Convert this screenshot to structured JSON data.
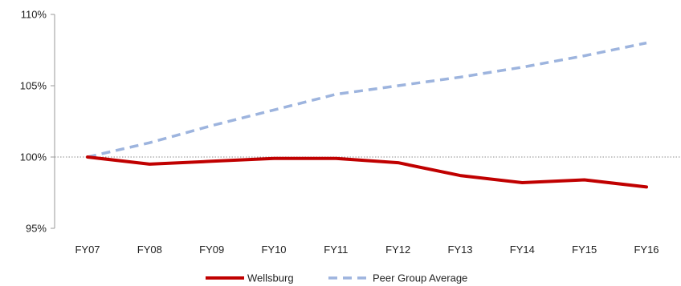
{
  "chart_data": {
    "type": "line",
    "title": "",
    "xlabel": "",
    "ylabel": "",
    "categories": [
      "FY07",
      "FY08",
      "FY09",
      "FY10",
      "FY11",
      "FY12",
      "FY13",
      "FY14",
      "FY15",
      "FY16"
    ],
    "ylim": [
      95,
      110
    ],
    "yticks": [
      95,
      100,
      105,
      110
    ],
    "ytick_labels": [
      "95%",
      "100%",
      "105%",
      "110%"
    ],
    "reference_line": 100,
    "grid": false,
    "legend_position": "bottom",
    "series": [
      {
        "name": "Wellsburg",
        "values": [
          100.0,
          99.5,
          99.7,
          99.9,
          99.9,
          99.6,
          98.7,
          98.2,
          98.4,
          97.9
        ],
        "color": "#C00000",
        "style": "solid"
      },
      {
        "name": "Peer Group Average",
        "values": [
          100.0,
          101.0,
          102.2,
          103.3,
          104.4,
          105.0,
          105.6,
          106.3,
          107.1,
          108.0
        ],
        "color": "#9DB4DE",
        "style": "dashed"
      }
    ]
  }
}
